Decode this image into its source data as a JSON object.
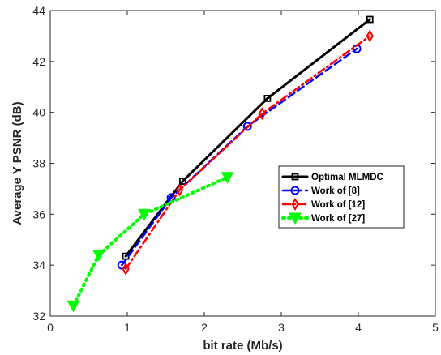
{
  "chart_data": {
    "type": "line",
    "xlabel": "bit rate (Mb/s)",
    "ylabel": "Average Y PSNR (dB)",
    "xlim": [
      0,
      5
    ],
    "ylim": [
      32,
      44
    ],
    "xticks": [
      "0",
      "1",
      "2",
      "3",
      "4",
      "5"
    ],
    "yticks": [
      "32",
      "34",
      "36",
      "38",
      "40",
      "42",
      "44"
    ],
    "grid": false,
    "legend_position": "right",
    "series": [
      {
        "name": "Optimal MLMDC",
        "color": "#000000",
        "line_style": "solid",
        "marker": "square",
        "x": [
          0.98,
          1.72,
          2.82,
          4.15
        ],
        "y": [
          34.35,
          37.3,
          40.55,
          43.65
        ]
      },
      {
        "name": "Work of [8]",
        "color": "#0000ff",
        "line_style": "dashed",
        "marker": "circle",
        "x": [
          0.93,
          1.57,
          2.56,
          3.98
        ],
        "y": [
          34.0,
          36.65,
          39.45,
          42.5
        ]
      },
      {
        "name": "Work of [12]",
        "color": "#ff0000",
        "line_style": "dashdot",
        "marker": "diamond",
        "x": [
          0.98,
          1.68,
          2.75,
          4.15
        ],
        "y": [
          33.85,
          36.95,
          39.95,
          43.0
        ]
      },
      {
        "name": "Work of [27]",
        "color": "#00ff00",
        "line_style": "dotted",
        "marker": "triangle-down",
        "x": [
          0.3,
          0.63,
          1.22,
          2.3
        ],
        "y": [
          32.4,
          34.4,
          36.0,
          37.45
        ]
      }
    ]
  }
}
